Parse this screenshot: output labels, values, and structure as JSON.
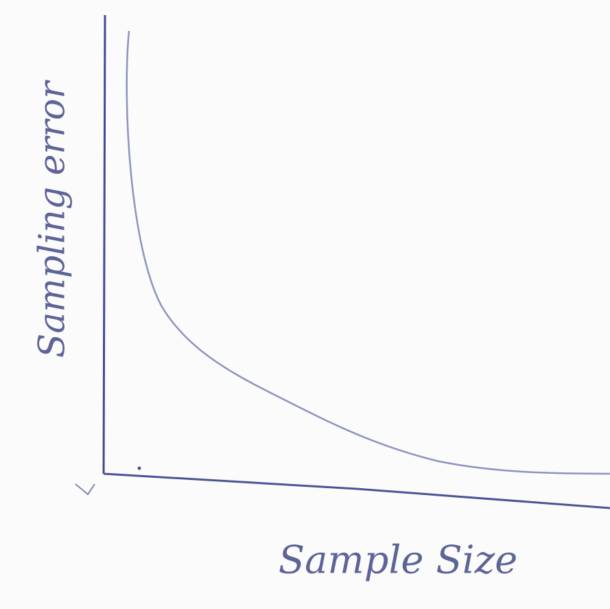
{
  "diagram": {
    "x_axis_label": "Sample Size",
    "y_axis_label": "Sampling error"
  }
}
